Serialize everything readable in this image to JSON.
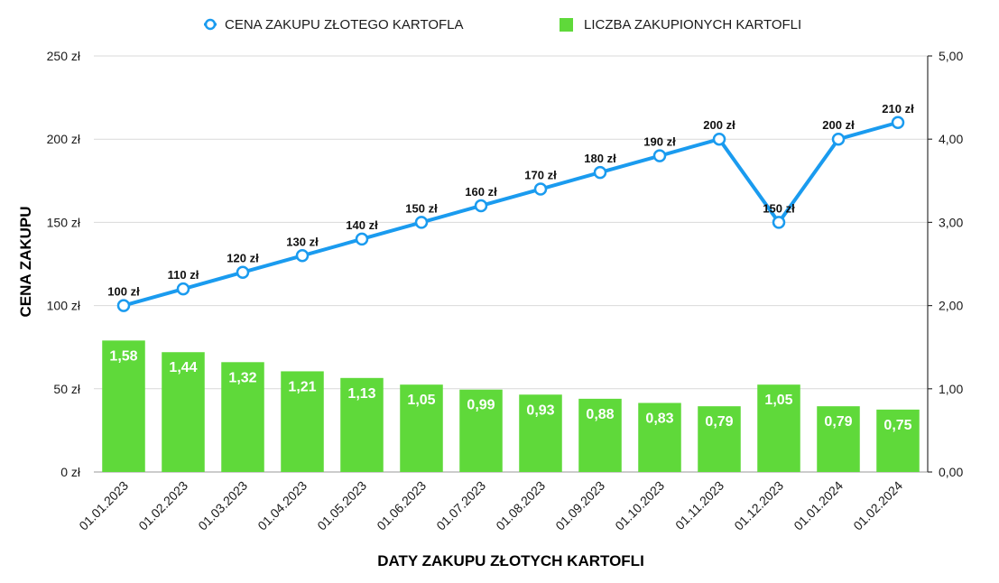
{
  "chart_data": {
    "type": "bar+line",
    "legend": {
      "line_label": "CENA ZAKUPU ZŁOTEGO KARTOFLA",
      "bar_label": "LICZBA ZAKUPIONYCH KARTOFLI",
      "placement": "top-center"
    },
    "xlabel": "DATY ZAKUPU ZŁOTYCH KARTOFLI",
    "ylabel": "CENA ZAKUPU",
    "categories": [
      "01.01.2023",
      "01.02.2023",
      "01.03.2023",
      "01.04.2023",
      "01.05.2023",
      "01.06.2023",
      "01.07.2023",
      "01.08.2023",
      "01.09.2023",
      "01.10.2023",
      "01.11.2023",
      "01.12.2023",
      "01.01.2024",
      "01.02.2024"
    ],
    "series": [
      {
        "name": "CENA ZAKUPU ZŁOTEGO KARTOFLA",
        "type": "line",
        "axis": "left",
        "values": [
          100,
          110,
          120,
          130,
          140,
          150,
          160,
          170,
          180,
          190,
          200,
          150,
          200,
          210
        ],
        "labels": [
          "100 zł",
          "110 zł",
          "120 zł",
          "130 zł",
          "140 zł",
          "150 zł",
          "160 zł",
          "170 zł",
          "180 zł",
          "190 zł",
          "200 zł",
          "150 zł",
          "200 zł",
          "210 zł"
        ]
      },
      {
        "name": "LICZBA ZAKUPIONYCH KARTOFLI",
        "type": "bar",
        "axis": "right",
        "values": [
          1.58,
          1.44,
          1.32,
          1.21,
          1.13,
          1.05,
          0.99,
          0.93,
          0.88,
          0.83,
          0.79,
          1.05,
          0.79,
          0.75
        ],
        "labels": [
          "1,58",
          "1,44",
          "1,32",
          "1,21",
          "1,13",
          "1,05",
          "0,99",
          "0,93",
          "0,88",
          "0,83",
          "0,79",
          "1,05",
          "0,79",
          "0,75"
        ]
      }
    ],
    "left_axis": {
      "ylim": [
        0,
        250
      ],
      "ticks": [
        0,
        50,
        100,
        150,
        200,
        250
      ],
      "tick_labels": [
        "0 zł",
        "50 zł",
        "100 zł",
        "150 zł",
        "200 zł",
        "250 zł"
      ]
    },
    "right_axis": {
      "ylim": [
        0,
        5
      ],
      "ticks": [
        0,
        1,
        2,
        3,
        4,
        5
      ],
      "tick_labels": [
        "0,00",
        "1,00",
        "2,00",
        "3,00",
        "4,00",
        "5,00"
      ]
    },
    "grid": true,
    "colors": {
      "line": "#1a9bef",
      "bar": "#5fd93a",
      "grid": "#d9d9d9"
    }
  }
}
